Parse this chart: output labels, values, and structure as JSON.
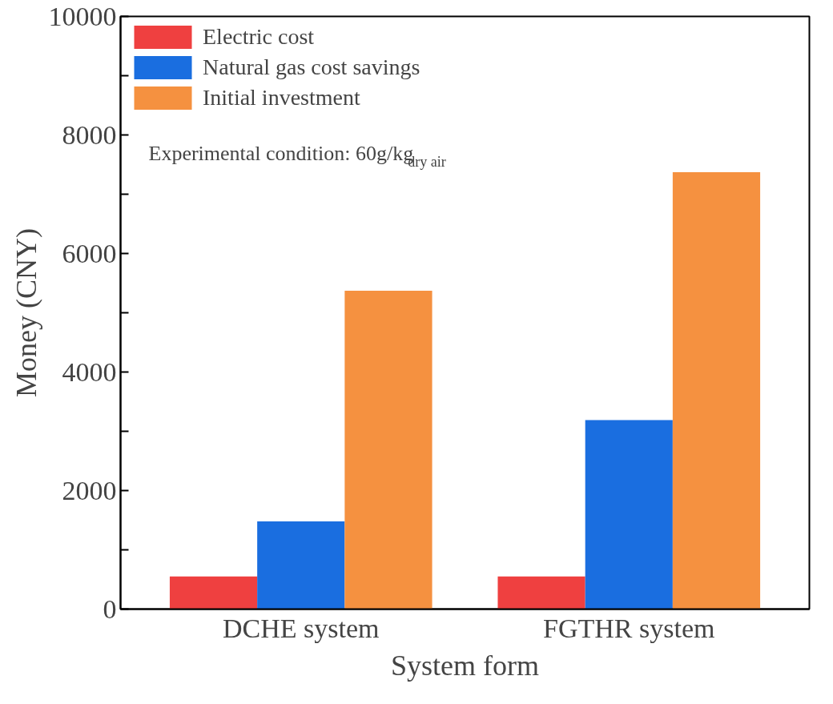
{
  "chart_data": {
    "type": "bar",
    "xlabel": "System form",
    "ylabel": "Money (CNY)",
    "categories": [
      "DCHE system",
      "FGTHR system"
    ],
    "series": [
      {
        "name": "Electric cost",
        "color": "#ef4040",
        "values": [
          550,
          550
        ]
      },
      {
        "name": "Natural gas cost savings",
        "color": "#1a6ee0",
        "values": [
          1480,
          3190
        ]
      },
      {
        "name": "Initial investment",
        "color": "#f59140",
        "values": [
          5370,
          7370
        ]
      }
    ],
    "ylim": [
      0,
      10000
    ],
    "yticks": [
      0,
      {
        "value": 1000,
        "label": null
      },
      2000,
      {
        "value": 3000,
        "label": null
      },
      4000,
      {
        "value": 5000,
        "label": null
      },
      6000,
      {
        "value": 7000,
        "label": null
      },
      8000,
      {
        "value": 9000,
        "label": null
      },
      10000
    ],
    "annotations": [
      "Experimental condition: 60g/kg$_{dry air}$"
    ],
    "legend": "top left",
    "grid": false
  }
}
